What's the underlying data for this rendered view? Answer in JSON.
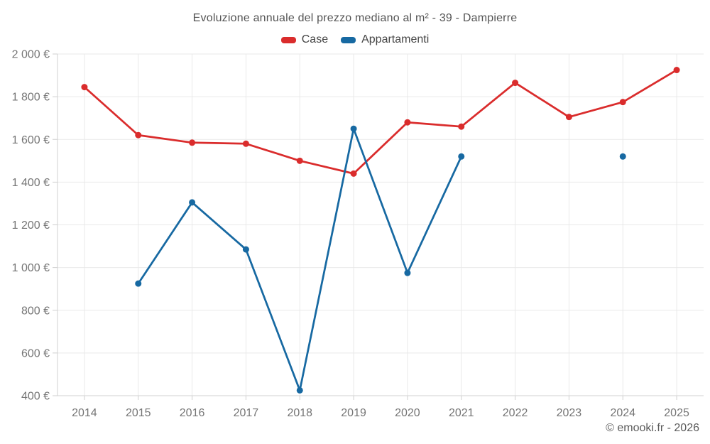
{
  "chart_data": {
    "type": "line",
    "title": "Evoluzione annuale del prezzo mediano al m² - 39 - Dampierre",
    "categories": [
      "2014",
      "2015",
      "2016",
      "2017",
      "2018",
      "2019",
      "2020",
      "2021",
      "2022",
      "2023",
      "2024",
      "2025"
    ],
    "series": [
      {
        "name": "Case",
        "color": "#da2c2c",
        "values": [
          1845,
          1620,
          1585,
          1580,
          1500,
          1440,
          1680,
          1660,
          1865,
          1705,
          1775,
          1925
        ]
      },
      {
        "name": "Appartamenti",
        "color": "#1769a2",
        "values": [
          null,
          925,
          1305,
          1085,
          425,
          1650,
          975,
          1520,
          null,
          null,
          1520,
          null
        ]
      }
    ],
    "xlabel": "",
    "ylabel": "",
    "ylim": [
      400,
      2000
    ],
    "ytick_step": 200,
    "ytick_suffix": " €",
    "thousands_separator": " ",
    "grid": true,
    "legend_position": "top"
  },
  "footer": {
    "credit": "© emooki.fr - 2026"
  },
  "colors": {
    "background": "#ffffff",
    "grid": "#e9e9e9",
    "axis": "#d2d2d2",
    "tick": "#cfcfcf",
    "tick_label": "#757575",
    "title": "#545454",
    "legend_label": "#454545",
    "footer": "#5a5a5a"
  }
}
